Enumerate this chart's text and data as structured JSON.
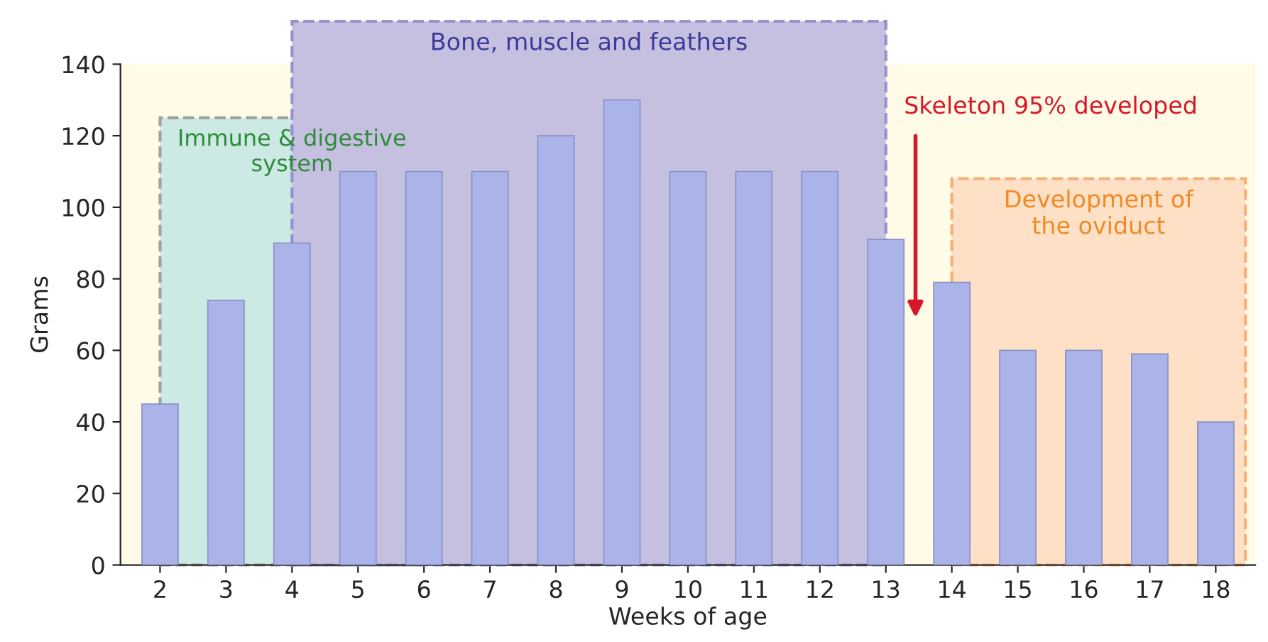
{
  "chart_data": {
    "type": "bar",
    "xlabel": "Weeks of age",
    "ylabel": "Grams",
    "categories": [
      "2",
      "3",
      "4",
      "5",
      "6",
      "7",
      "8",
      "9",
      "10",
      "11",
      "12",
      "13",
      "14",
      "15",
      "16",
      "17",
      "18"
    ],
    "values": [
      45,
      74,
      90,
      110,
      110,
      110,
      120,
      130,
      110,
      110,
      110,
      91,
      79,
      60,
      60,
      59,
      40
    ],
    "color": "#aab4e8",
    "ylim": [
      0,
      140
    ],
    "yticks": [
      0,
      20,
      40,
      60,
      80,
      100,
      120,
      140
    ],
    "grid": false,
    "bands": [
      {
        "axis": "x",
        "from": "2",
        "to": "6",
        "label": "Immune & digestive\nsystem",
        "color": "#cce9e3"
      },
      {
        "axis": "x",
        "from": "4",
        "to": "13",
        "label": "Bone, muscle and feathers",
        "color": "#c5c0e0"
      },
      {
        "axis": "x",
        "from": "14",
        "to": "18",
        "label": "Development of\nthe oviduct",
        "color": "#fde0c6"
      }
    ],
    "annotations": [
      "Skeleton 95% developed"
    ]
  }
}
